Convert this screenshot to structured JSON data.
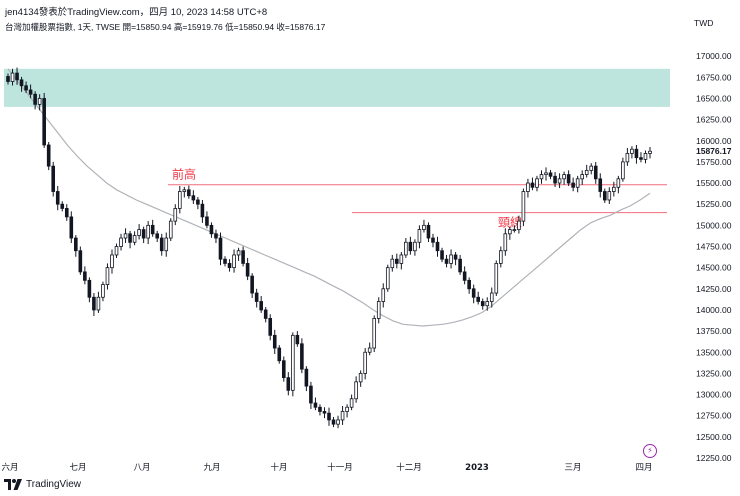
{
  "header": {
    "publisher_line": "jen4134發表於TradingView.com，四月 10, 2023 14:58 UTC+8",
    "symbol_info": "台灣加權股票指數, 1天, TWSE  開=15850.94  高=15919.76  低=15850.94  收=15876.17"
  },
  "currency_label": "TWD",
  "footer": {
    "brand": "TradingView"
  },
  "icons": {
    "flash": "lightning-icon",
    "logo": "tradingview-logo-icon"
  },
  "colors": {
    "up": "#131722",
    "down": "#131722",
    "zone": "#b2e0d8",
    "resistance": "#f26d7d",
    "annotation": "#f23645",
    "ma": "#b0b3b8",
    "last_price_bg": "#ffffff"
  },
  "chart_data": {
    "type": "candlestick",
    "ylim": [
      12250,
      17250
    ],
    "y_ticks": [
      12250,
      12500,
      12750,
      13000,
      13250,
      13500,
      13750,
      14000,
      14250,
      14500,
      14750,
      15000,
      15250,
      15500,
      15750,
      16000,
      16250,
      16500,
      16750,
      17000
    ],
    "x_labels": [
      "六月",
      "七月",
      "八月",
      "九月",
      "十月",
      "十一月",
      "十二月",
      "2023",
      "三月",
      "四月"
    ],
    "last_price": "15876.17",
    "zone": {
      "from": 16400,
      "to": 16850
    },
    "horizontal_lines": [
      {
        "label": "前高",
        "value": 15480
      },
      {
        "label": "頸線",
        "value": 15150
      }
    ],
    "close_series": [
      16700,
      16800,
      16720,
      16650,
      16600,
      16550,
      16430,
      16500,
      15950,
      15700,
      15400,
      15250,
      15200,
      15100,
      14850,
      14700,
      14450,
      14350,
      14150,
      14000,
      14150,
      14300,
      14500,
      14650,
      14750,
      14850,
      14900,
      14800,
      14880,
      14950,
      14850,
      15000,
      14900,
      14850,
      14700,
      14850,
      15050,
      15200,
      15400,
      15420,
      15350,
      15300,
      15250,
      15100,
      15000,
      14900,
      14850,
      14600,
      14550,
      14500,
      14650,
      14700,
      14550,
      14400,
      14200,
      14100,
      14000,
      13900,
      13700,
      13550,
      13400,
      13200,
      13050,
      13700,
      13600,
      13300,
      13100,
      12900,
      12850,
      12800,
      12780,
      12700,
      12650,
      12700,
      12800,
      12850,
      12950,
      13150,
      13250,
      13500,
      13550,
      13900,
      14100,
      14250,
      14500,
      14600,
      14550,
      14650,
      14800,
      14700,
      14800,
      14950,
      15000,
      14850,
      14800,
      14700,
      14600,
      14550,
      14650,
      14600,
      14450,
      14350,
      14250,
      14150,
      14100,
      14050,
      14100,
      14200,
      14550,
      14700,
      14900,
      14950,
      14950,
      15050,
      15400,
      15500,
      15450,
      15550,
      15600,
      15620,
      15580,
      15500,
      15550,
      15600,
      15500,
      15450,
      15550,
      15600,
      15650,
      15700,
      15550,
      15400,
      15300,
      15400,
      15450,
      15550,
      15750,
      15850,
      15900,
      15800,
      15780,
      15850,
      15876.17
    ],
    "ma_series": [
      16850,
      16700,
      16550,
      16400,
      16250,
      16100,
      15950,
      15820,
      15700,
      15600,
      15500,
      15420,
      15360,
      15300,
      15250,
      15200,
      15150,
      15100,
      15050,
      15000,
      14950,
      14900,
      14850,
      14800,
      14750,
      14700,
      14650,
      14600,
      14550,
      14500,
      14450,
      14400,
      14340,
      14280,
      14220,
      14150,
      14080,
      14000,
      13930,
      13870,
      13830,
      13820,
      13810,
      13820,
      13830,
      13850,
      13880,
      13920,
      13970,
      14050,
      14150,
      14250,
      14350,
      14450,
      14550,
      14650,
      14750,
      14850,
      14950,
      15030,
      15080,
      15120,
      15180,
      15230,
      15300,
      15380
    ]
  }
}
